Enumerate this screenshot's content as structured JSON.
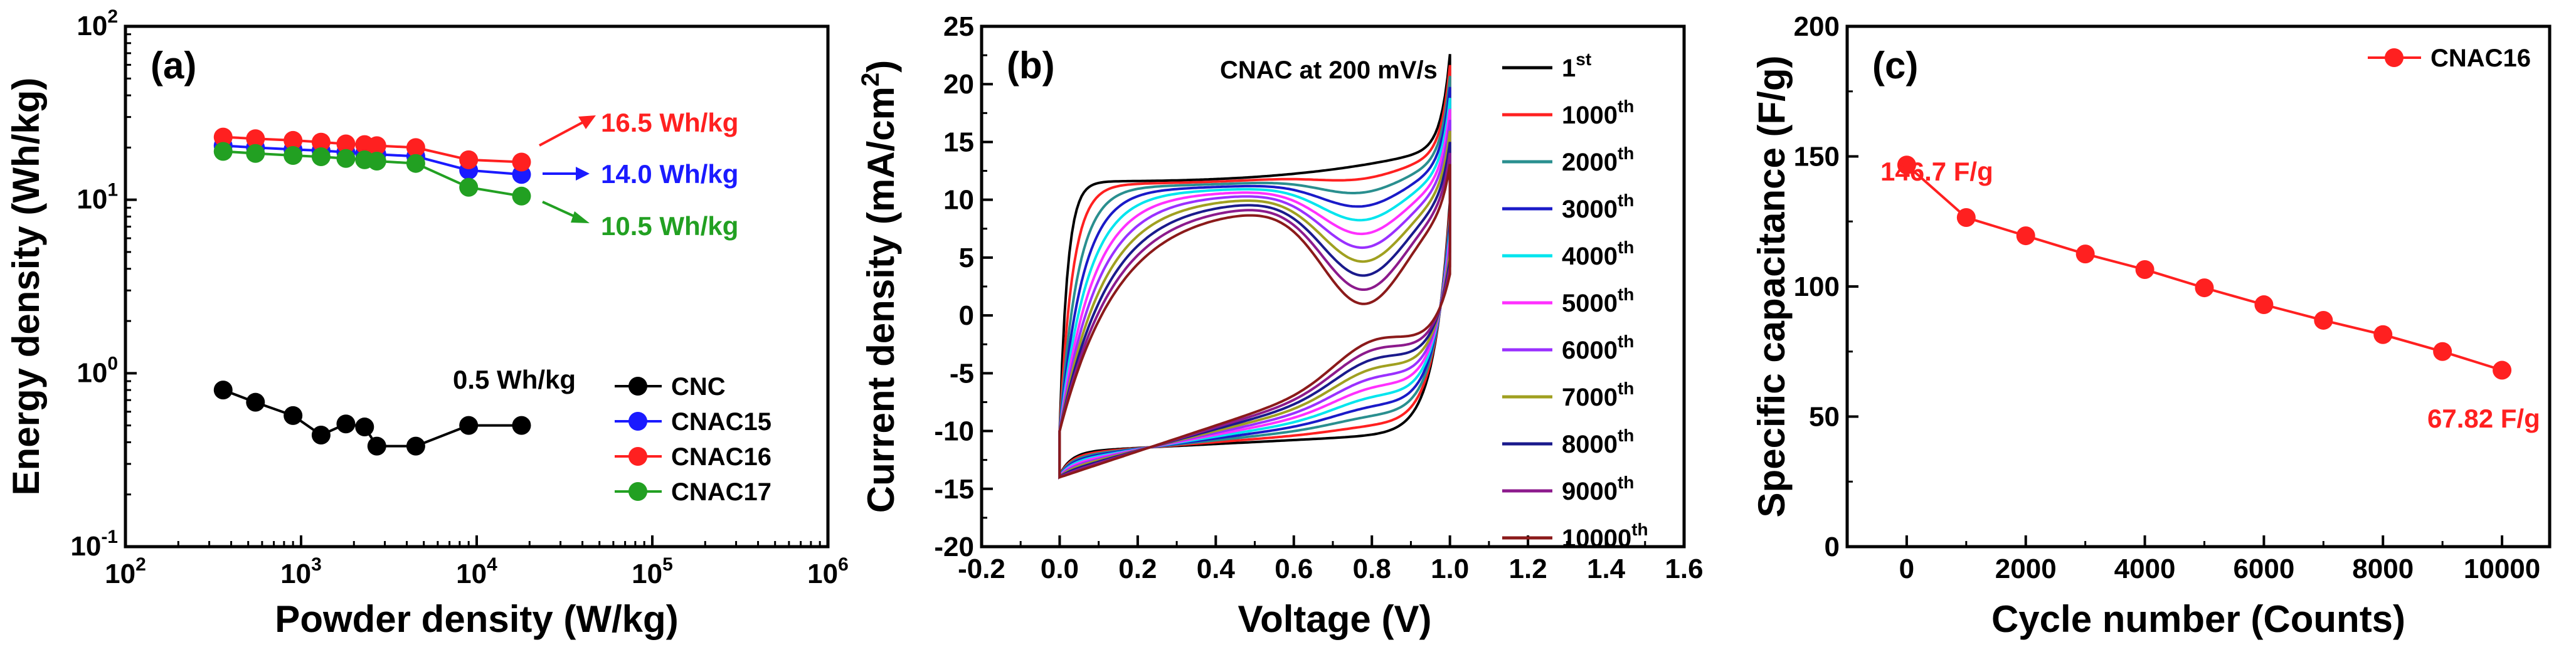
{
  "chart_data": [
    {
      "panel": "(a)",
      "type": "line",
      "xscale": "log",
      "yscale": "log",
      "xlabel": "Powder density (W/kg)",
      "ylabel": "Energy density (Wh/kg)",
      "xlim": [
        100,
        1000000
      ],
      "ylim": [
        0.1,
        100
      ],
      "xticks": [
        {
          "v": 100,
          "base": "10",
          "exp": "2"
        },
        {
          "v": 1000,
          "base": "10",
          "exp": "3"
        },
        {
          "v": 10000,
          "base": "10",
          "exp": "4"
        },
        {
          "v": 100000,
          "base": "10",
          "exp": "5"
        },
        {
          "v": 1000000,
          "base": "10",
          "exp": "6"
        }
      ],
      "yticks": [
        {
          "v": 0.1,
          "base": "10",
          "exp": "-1"
        },
        {
          "v": 1,
          "base": "10",
          "exp": "0"
        },
        {
          "v": 10,
          "base": "10",
          "exp": "1"
        },
        {
          "v": 100,
          "base": "10",
          "exp": "2"
        }
      ],
      "series": [
        {
          "name": "CNC",
          "color": "#000000",
          "x": [
            360,
            550,
            900,
            1300,
            1800,
            2300,
            2700,
            4500,
            9000,
            18000
          ],
          "y": [
            0.8,
            0.68,
            0.57,
            0.44,
            0.51,
            0.49,
            0.38,
            0.38,
            0.5,
            0.5
          ]
        },
        {
          "name": "CNAC15",
          "color": "#1a1aff",
          "x": [
            360,
            550,
            900,
            1300,
            1800,
            2300,
            2700,
            4500,
            9000,
            18000
          ],
          "y": [
            20.5,
            20.0,
            19.5,
            19.2,
            18.8,
            18.5,
            18.3,
            17.8,
            14.8,
            14.0
          ]
        },
        {
          "name": "CNAC16",
          "color": "#ff2020",
          "x": [
            360,
            550,
            900,
            1300,
            1800,
            2300,
            2700,
            4500,
            9000,
            18000
          ],
          "y": [
            23.0,
            22.5,
            22.0,
            21.5,
            21.0,
            20.8,
            20.5,
            20.0,
            17.0,
            16.5
          ]
        },
        {
          "name": "CNAC17",
          "color": "#22a022",
          "x": [
            360,
            550,
            900,
            1300,
            1800,
            2300,
            2700,
            4500,
            9000,
            18000
          ],
          "y": [
            19.0,
            18.5,
            18.0,
            17.7,
            17.3,
            17.0,
            16.7,
            16.2,
            11.8,
            10.5
          ]
        }
      ],
      "annotations": [
        {
          "text": "16.5 Wh/kg",
          "color": "#ff2020"
        },
        {
          "text": "14.0 Wh/kg",
          "color": "#1a1aff"
        },
        {
          "text": "10.5 Wh/kg",
          "color": "#22a022"
        },
        {
          "text": "0.5 Wh/kg",
          "color": "#000000"
        }
      ]
    },
    {
      "panel": "(b)",
      "type": "line",
      "title": "CNAC at 200 mV/s",
      "xlabel": "Voltage (V)",
      "ylabel_main": "Current density (mA/cm",
      "ylabel_sup": "2",
      "ylabel_tail": ")",
      "xlim": [
        -0.2,
        1.6
      ],
      "ylim": [
        -20,
        25
      ],
      "xticks": [
        "-0.2",
        "0.0",
        "0.2",
        "0.4",
        "0.6",
        "0.8",
        "1.0",
        "1.2",
        "1.4",
        "1.6"
      ],
      "yticks": [
        "-20",
        "-15",
        "-10",
        "-5",
        "0",
        "5",
        "10",
        "15",
        "20",
        "25"
      ],
      "series": [
        {
          "cycle": "1",
          "suffix": "st",
          "color": "#000000",
          "t": 0.0
        },
        {
          "cycle": "1000",
          "suffix": "th",
          "color": "#ff2020",
          "t": 0.1
        },
        {
          "cycle": "2000",
          "suffix": "th",
          "color": "#2a8f8f",
          "t": 0.2
        },
        {
          "cycle": "3000",
          "suffix": "th",
          "color": "#1a1ac8",
          "t": 0.3
        },
        {
          "cycle": "4000",
          "suffix": "th",
          "color": "#00e5ee",
          "t": 0.4
        },
        {
          "cycle": "5000",
          "suffix": "th",
          "color": "#ff30ff",
          "t": 0.5
        },
        {
          "cycle": "6000",
          "suffix": "th",
          "color": "#9a30ff",
          "t": 0.6
        },
        {
          "cycle": "7000",
          "suffix": "th",
          "color": "#a0a020",
          "t": 0.7
        },
        {
          "cycle": "8000",
          "suffix": "th",
          "color": "#1a1a8c",
          "t": 0.8
        },
        {
          "cycle": "9000",
          "suffix": "th",
          "color": "#8c1a8c",
          "t": 0.9
        },
        {
          "cycle": "10000",
          "suffix": "th",
          "color": "#8b1a1a",
          "t": 1.0
        }
      ]
    },
    {
      "panel": "(c)",
      "type": "line",
      "xlabel": "Cycle number (Counts)",
      "ylabel": "Specific capacitance (F/g)",
      "xlim": [
        -1000,
        10800
      ],
      "ylim": [
        0,
        200
      ],
      "xticks": [
        "0",
        "2000",
        "4000",
        "6000",
        "8000",
        "10000"
      ],
      "yticks": [
        "0",
        "50",
        "100",
        "150",
        "200"
      ],
      "series": [
        {
          "name": "CNAC16",
          "color": "#ff2020",
          "x": [
            0,
            1000,
            2000,
            3000,
            4000,
            5000,
            6000,
            7000,
            8000,
            9000,
            10000
          ],
          "y": [
            146.7,
            126.5,
            119.5,
            112.5,
            106.5,
            99.5,
            93.0,
            87.0,
            81.5,
            75.0,
            67.82
          ]
        }
      ],
      "annotations": [
        {
          "text": "146.7 F/g",
          "color": "#ff2020"
        },
        {
          "text": "67.82 F/g",
          "color": "#ff2020"
        }
      ]
    }
  ]
}
